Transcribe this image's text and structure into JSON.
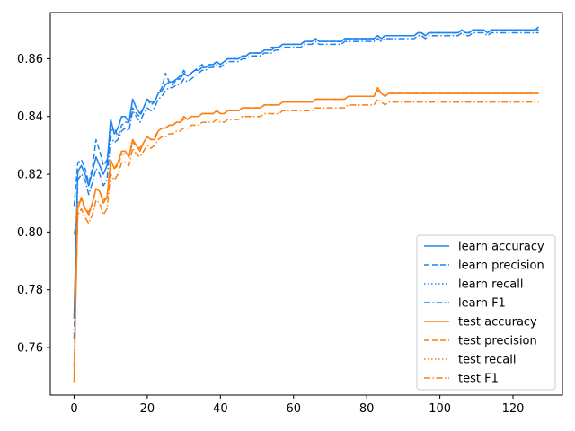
{
  "chart_data": {
    "type": "line",
    "title": "",
    "xlabel": "",
    "ylabel": "",
    "xlim": [
      -6.5,
      133.5
    ],
    "ylim": [
      0.7435,
      0.876
    ],
    "xticks": [
      0,
      20,
      40,
      60,
      80,
      100,
      120
    ],
    "yticks": [
      0.76,
      0.78,
      0.8,
      0.82,
      0.84,
      0.86
    ],
    "grid": false,
    "legend_position": "lower-right",
    "series": [
      {
        "name": "learn accuracy",
        "color": "#1f83f0",
        "dash": "solid",
        "x_start": 0,
        "x_step": 1,
        "values": [
          0.77,
          0.821,
          0.823,
          0.82,
          0.816,
          0.821,
          0.826,
          0.823,
          0.82,
          0.823,
          0.839,
          0.834,
          0.836,
          0.84,
          0.84,
          0.838,
          0.846,
          0.843,
          0.841,
          0.843,
          0.846,
          0.845,
          0.845,
          0.848,
          0.849,
          0.851,
          0.852,
          0.852,
          0.853,
          0.853,
          0.855,
          0.854,
          0.855,
          0.856,
          0.856,
          0.857,
          0.857,
          0.858,
          0.858,
          0.859,
          0.858,
          0.859,
          0.86,
          0.86,
          0.86,
          0.86,
          0.861,
          0.861,
          0.862,
          0.862,
          0.862,
          0.862,
          0.863,
          0.863,
          0.863,
          0.864,
          0.864,
          0.865,
          0.865,
          0.865,
          0.865,
          0.865,
          0.865,
          0.866,
          0.866,
          0.866,
          0.867,
          0.866,
          0.866,
          0.866,
          0.866,
          0.866,
          0.866,
          0.866,
          0.867,
          0.867,
          0.867,
          0.867,
          0.867,
          0.867,
          0.867,
          0.867,
          0.867,
          0.868,
          0.867,
          0.868,
          0.868,
          0.868,
          0.868,
          0.868,
          0.868,
          0.868,
          0.868,
          0.868,
          0.869,
          0.869,
          0.868,
          0.869,
          0.869,
          0.869,
          0.869,
          0.869,
          0.869,
          0.869,
          0.869,
          0.869,
          0.87,
          0.869,
          0.869,
          0.87,
          0.87,
          0.87,
          0.87,
          0.869,
          0.87,
          0.87,
          0.87,
          0.87,
          0.87,
          0.87,
          0.87,
          0.87,
          0.87,
          0.87,
          0.87,
          0.87,
          0.87,
          0.871
        ]
      },
      {
        "name": "learn precision",
        "color": "#1f83f0",
        "dash": "dashed",
        "x_start": 0,
        "x_step": 1,
        "values": [
          0.809,
          0.824,
          0.825,
          0.822,
          0.817,
          0.822,
          0.832,
          0.828,
          0.823,
          0.825,
          0.835,
          0.836,
          0.833,
          0.837,
          0.838,
          0.838,
          0.843,
          0.841,
          0.84,
          0.843,
          0.846,
          0.844,
          0.845,
          0.848,
          0.85,
          0.855,
          0.852,
          0.851,
          0.853,
          0.854,
          0.856,
          0.854,
          0.855,
          0.856,
          0.857,
          0.858,
          0.857,
          0.858,
          0.858,
          0.859,
          0.858,
          0.859,
          0.86,
          0.86,
          0.86,
          0.86,
          0.861,
          0.861,
          0.862,
          0.862,
          0.862,
          0.862,
          0.863,
          0.863,
          0.864,
          0.864,
          0.864,
          0.865,
          0.865,
          0.865,
          0.865,
          0.865,
          0.865,
          0.866,
          0.866,
          0.866,
          0.867,
          0.866,
          0.866,
          0.866,
          0.866,
          0.866,
          0.866,
          0.866,
          0.867,
          0.867,
          0.867,
          0.867,
          0.867,
          0.867,
          0.867,
          0.867,
          0.867,
          0.868,
          0.867,
          0.868,
          0.868,
          0.868,
          0.868,
          0.868,
          0.868,
          0.868,
          0.868,
          0.868,
          0.869,
          0.869,
          0.868,
          0.869,
          0.869,
          0.869,
          0.869,
          0.869,
          0.869,
          0.869,
          0.869,
          0.869,
          0.87,
          0.869,
          0.869,
          0.87,
          0.87,
          0.87,
          0.87,
          0.869,
          0.87,
          0.87,
          0.87,
          0.87,
          0.87,
          0.87,
          0.87,
          0.87,
          0.87,
          0.87,
          0.87,
          0.87,
          0.87,
          0.87
        ]
      },
      {
        "name": "learn recall",
        "color": "#1f83f0",
        "dash": "dotted",
        "x_start": 0,
        "x_step": 1,
        "values": [
          0.77,
          0.821,
          0.823,
          0.82,
          0.816,
          0.821,
          0.826,
          0.823,
          0.82,
          0.823,
          0.839,
          0.834,
          0.836,
          0.84,
          0.84,
          0.838,
          0.846,
          0.843,
          0.841,
          0.843,
          0.846,
          0.845,
          0.845,
          0.848,
          0.849,
          0.851,
          0.852,
          0.852,
          0.853,
          0.853,
          0.855,
          0.854,
          0.855,
          0.856,
          0.856,
          0.857,
          0.857,
          0.858,
          0.858,
          0.859,
          0.858,
          0.859,
          0.86,
          0.86,
          0.86,
          0.86,
          0.861,
          0.861,
          0.862,
          0.862,
          0.862,
          0.862,
          0.863,
          0.863,
          0.863,
          0.864,
          0.864,
          0.865,
          0.865,
          0.865,
          0.865,
          0.865,
          0.865,
          0.866,
          0.866,
          0.866,
          0.867,
          0.866,
          0.866,
          0.866,
          0.866,
          0.866,
          0.866,
          0.866,
          0.867,
          0.867,
          0.867,
          0.867,
          0.867,
          0.867,
          0.867,
          0.867,
          0.867,
          0.868,
          0.867,
          0.868,
          0.868,
          0.868,
          0.868,
          0.868,
          0.868,
          0.868,
          0.868,
          0.868,
          0.869,
          0.869,
          0.868,
          0.869,
          0.869,
          0.869,
          0.869,
          0.869,
          0.869,
          0.869,
          0.869,
          0.869,
          0.87,
          0.869,
          0.869,
          0.87,
          0.87,
          0.87,
          0.87,
          0.869,
          0.87,
          0.87,
          0.87,
          0.87,
          0.87,
          0.87,
          0.87,
          0.87,
          0.87,
          0.87,
          0.87,
          0.87,
          0.87,
          0.871
        ]
      },
      {
        "name": "learn F1",
        "color": "#1f83f0",
        "dash": "dashdot",
        "x_start": 0,
        "x_step": 1,
        "values": [
          0.763,
          0.818,
          0.82,
          0.818,
          0.813,
          0.817,
          0.822,
          0.82,
          0.816,
          0.818,
          0.833,
          0.831,
          0.832,
          0.835,
          0.836,
          0.835,
          0.842,
          0.84,
          0.838,
          0.841,
          0.843,
          0.842,
          0.843,
          0.846,
          0.847,
          0.849,
          0.85,
          0.85,
          0.851,
          0.851,
          0.853,
          0.852,
          0.853,
          0.854,
          0.855,
          0.856,
          0.856,
          0.857,
          0.857,
          0.858,
          0.857,
          0.858,
          0.859,
          0.859,
          0.859,
          0.859,
          0.86,
          0.86,
          0.861,
          0.861,
          0.861,
          0.861,
          0.862,
          0.862,
          0.862,
          0.863,
          0.863,
          0.864,
          0.864,
          0.864,
          0.864,
          0.864,
          0.864,
          0.865,
          0.865,
          0.865,
          0.866,
          0.865,
          0.865,
          0.865,
          0.865,
          0.865,
          0.865,
          0.865,
          0.866,
          0.866,
          0.866,
          0.866,
          0.866,
          0.866,
          0.866,
          0.866,
          0.866,
          0.867,
          0.866,
          0.867,
          0.867,
          0.867,
          0.867,
          0.867,
          0.867,
          0.867,
          0.867,
          0.867,
          0.868,
          0.868,
          0.867,
          0.868,
          0.868,
          0.868,
          0.868,
          0.868,
          0.868,
          0.868,
          0.868,
          0.868,
          0.869,
          0.868,
          0.868,
          0.869,
          0.869,
          0.869,
          0.869,
          0.868,
          0.869,
          0.869,
          0.869,
          0.869,
          0.869,
          0.869,
          0.869,
          0.869,
          0.869,
          0.869,
          0.869,
          0.869,
          0.869,
          0.869
        ]
      },
      {
        "name": "test accuracy",
        "color": "#ff7f0e",
        "dash": "solid",
        "x_start": 0,
        "x_step": 1,
        "values": [
          0.748,
          0.808,
          0.812,
          0.808,
          0.806,
          0.81,
          0.815,
          0.814,
          0.81,
          0.812,
          0.825,
          0.822,
          0.824,
          0.828,
          0.828,
          0.826,
          0.832,
          0.83,
          0.828,
          0.831,
          0.833,
          0.832,
          0.832,
          0.835,
          0.836,
          0.836,
          0.837,
          0.837,
          0.838,
          0.838,
          0.84,
          0.839,
          0.84,
          0.84,
          0.84,
          0.841,
          0.841,
          0.841,
          0.841,
          0.842,
          0.841,
          0.841,
          0.842,
          0.842,
          0.842,
          0.842,
          0.843,
          0.843,
          0.843,
          0.843,
          0.843,
          0.843,
          0.844,
          0.844,
          0.844,
          0.844,
          0.844,
          0.845,
          0.845,
          0.845,
          0.845,
          0.845,
          0.845,
          0.845,
          0.845,
          0.845,
          0.846,
          0.846,
          0.846,
          0.846,
          0.846,
          0.846,
          0.846,
          0.846,
          0.846,
          0.847,
          0.847,
          0.847,
          0.847,
          0.847,
          0.847,
          0.847,
          0.847,
          0.85,
          0.848,
          0.847,
          0.848,
          0.848,
          0.848,
          0.848,
          0.848,
          0.848,
          0.848,
          0.848,
          0.848,
          0.848,
          0.848,
          0.848,
          0.848,
          0.848,
          0.848,
          0.848,
          0.848,
          0.848,
          0.848,
          0.848,
          0.848,
          0.848,
          0.848,
          0.848,
          0.848,
          0.848,
          0.848,
          0.848,
          0.848,
          0.848,
          0.848,
          0.848,
          0.848,
          0.848,
          0.848,
          0.848,
          0.848,
          0.848,
          0.848,
          0.848,
          0.848,
          0.848
        ]
      },
      {
        "name": "test precision",
        "color": "#ff7f0e",
        "dash": "dashed",
        "x_start": 0,
        "x_step": 1,
        "values": [
          0.799,
          0.81,
          0.811,
          0.808,
          0.807,
          0.81,
          0.815,
          0.814,
          0.811,
          0.812,
          0.823,
          0.822,
          0.823,
          0.827,
          0.827,
          0.826,
          0.831,
          0.83,
          0.829,
          0.831,
          0.833,
          0.832,
          0.833,
          0.835,
          0.836,
          0.836,
          0.837,
          0.837,
          0.838,
          0.838,
          0.839,
          0.839,
          0.84,
          0.84,
          0.84,
          0.841,
          0.841,
          0.841,
          0.841,
          0.842,
          0.841,
          0.841,
          0.842,
          0.842,
          0.842,
          0.842,
          0.843,
          0.843,
          0.843,
          0.843,
          0.843,
          0.843,
          0.844,
          0.844,
          0.844,
          0.844,
          0.844,
          0.845,
          0.845,
          0.845,
          0.845,
          0.845,
          0.845,
          0.845,
          0.845,
          0.845,
          0.846,
          0.846,
          0.846,
          0.846,
          0.846,
          0.846,
          0.846,
          0.846,
          0.846,
          0.847,
          0.847,
          0.847,
          0.847,
          0.847,
          0.847,
          0.847,
          0.847,
          0.849,
          0.848,
          0.847,
          0.848,
          0.848,
          0.848,
          0.848,
          0.848,
          0.848,
          0.848,
          0.848,
          0.848,
          0.848,
          0.848,
          0.848,
          0.848,
          0.848,
          0.848,
          0.848,
          0.848,
          0.848,
          0.848,
          0.848,
          0.848,
          0.848,
          0.848,
          0.848,
          0.848,
          0.848,
          0.848,
          0.848,
          0.848,
          0.848,
          0.848,
          0.848,
          0.848,
          0.848,
          0.848,
          0.848,
          0.848,
          0.848,
          0.848,
          0.848,
          0.848,
          0.848
        ]
      },
      {
        "name": "test recall",
        "color": "#ff7f0e",
        "dash": "dotted",
        "x_start": 0,
        "x_step": 1,
        "values": [
          0.748,
          0.808,
          0.812,
          0.808,
          0.806,
          0.81,
          0.815,
          0.814,
          0.81,
          0.812,
          0.825,
          0.822,
          0.824,
          0.828,
          0.828,
          0.826,
          0.832,
          0.83,
          0.828,
          0.831,
          0.833,
          0.832,
          0.832,
          0.835,
          0.836,
          0.836,
          0.837,
          0.837,
          0.838,
          0.838,
          0.84,
          0.839,
          0.84,
          0.84,
          0.84,
          0.841,
          0.841,
          0.841,
          0.841,
          0.842,
          0.841,
          0.841,
          0.842,
          0.842,
          0.842,
          0.842,
          0.843,
          0.843,
          0.843,
          0.843,
          0.843,
          0.843,
          0.844,
          0.844,
          0.844,
          0.844,
          0.844,
          0.845,
          0.845,
          0.845,
          0.845,
          0.845,
          0.845,
          0.845,
          0.845,
          0.845,
          0.846,
          0.846,
          0.846,
          0.846,
          0.846,
          0.846,
          0.846,
          0.846,
          0.846,
          0.847,
          0.847,
          0.847,
          0.847,
          0.847,
          0.847,
          0.847,
          0.847,
          0.85,
          0.848,
          0.847,
          0.848,
          0.848,
          0.848,
          0.848,
          0.848,
          0.848,
          0.848,
          0.848,
          0.848,
          0.848,
          0.848,
          0.848,
          0.848,
          0.848,
          0.848,
          0.848,
          0.848,
          0.848,
          0.848,
          0.848,
          0.848,
          0.848,
          0.848,
          0.848,
          0.848,
          0.848,
          0.848,
          0.848,
          0.848,
          0.848,
          0.848,
          0.848,
          0.848,
          0.848,
          0.848,
          0.848,
          0.848,
          0.848,
          0.848,
          0.848,
          0.848,
          0.848
        ]
      },
      {
        "name": "test F1",
        "color": "#ff7f0e",
        "dash": "dashdot",
        "x_start": 0,
        "x_step": 1,
        "values": [
          0.753,
          0.806,
          0.808,
          0.805,
          0.803,
          0.806,
          0.811,
          0.81,
          0.806,
          0.808,
          0.82,
          0.818,
          0.82,
          0.824,
          0.824,
          0.823,
          0.829,
          0.827,
          0.826,
          0.828,
          0.83,
          0.829,
          0.83,
          0.832,
          0.833,
          0.833,
          0.834,
          0.834,
          0.835,
          0.835,
          0.836,
          0.836,
          0.837,
          0.837,
          0.837,
          0.838,
          0.838,
          0.838,
          0.838,
          0.839,
          0.838,
          0.838,
          0.839,
          0.839,
          0.839,
          0.839,
          0.84,
          0.84,
          0.84,
          0.84,
          0.84,
          0.84,
          0.841,
          0.841,
          0.841,
          0.841,
          0.841,
          0.842,
          0.842,
          0.842,
          0.842,
          0.842,
          0.842,
          0.842,
          0.842,
          0.842,
          0.843,
          0.843,
          0.843,
          0.843,
          0.843,
          0.843,
          0.843,
          0.843,
          0.843,
          0.844,
          0.844,
          0.844,
          0.844,
          0.844,
          0.844,
          0.844,
          0.844,
          0.846,
          0.845,
          0.844,
          0.845,
          0.845,
          0.845,
          0.845,
          0.845,
          0.845,
          0.845,
          0.845,
          0.845,
          0.845,
          0.845,
          0.845,
          0.845,
          0.845,
          0.845,
          0.845,
          0.845,
          0.845,
          0.845,
          0.845,
          0.845,
          0.845,
          0.845,
          0.845,
          0.845,
          0.845,
          0.845,
          0.845,
          0.845,
          0.845,
          0.845,
          0.845,
          0.845,
          0.845,
          0.845,
          0.845,
          0.845,
          0.845,
          0.845,
          0.845,
          0.845,
          0.845
        ]
      }
    ]
  }
}
